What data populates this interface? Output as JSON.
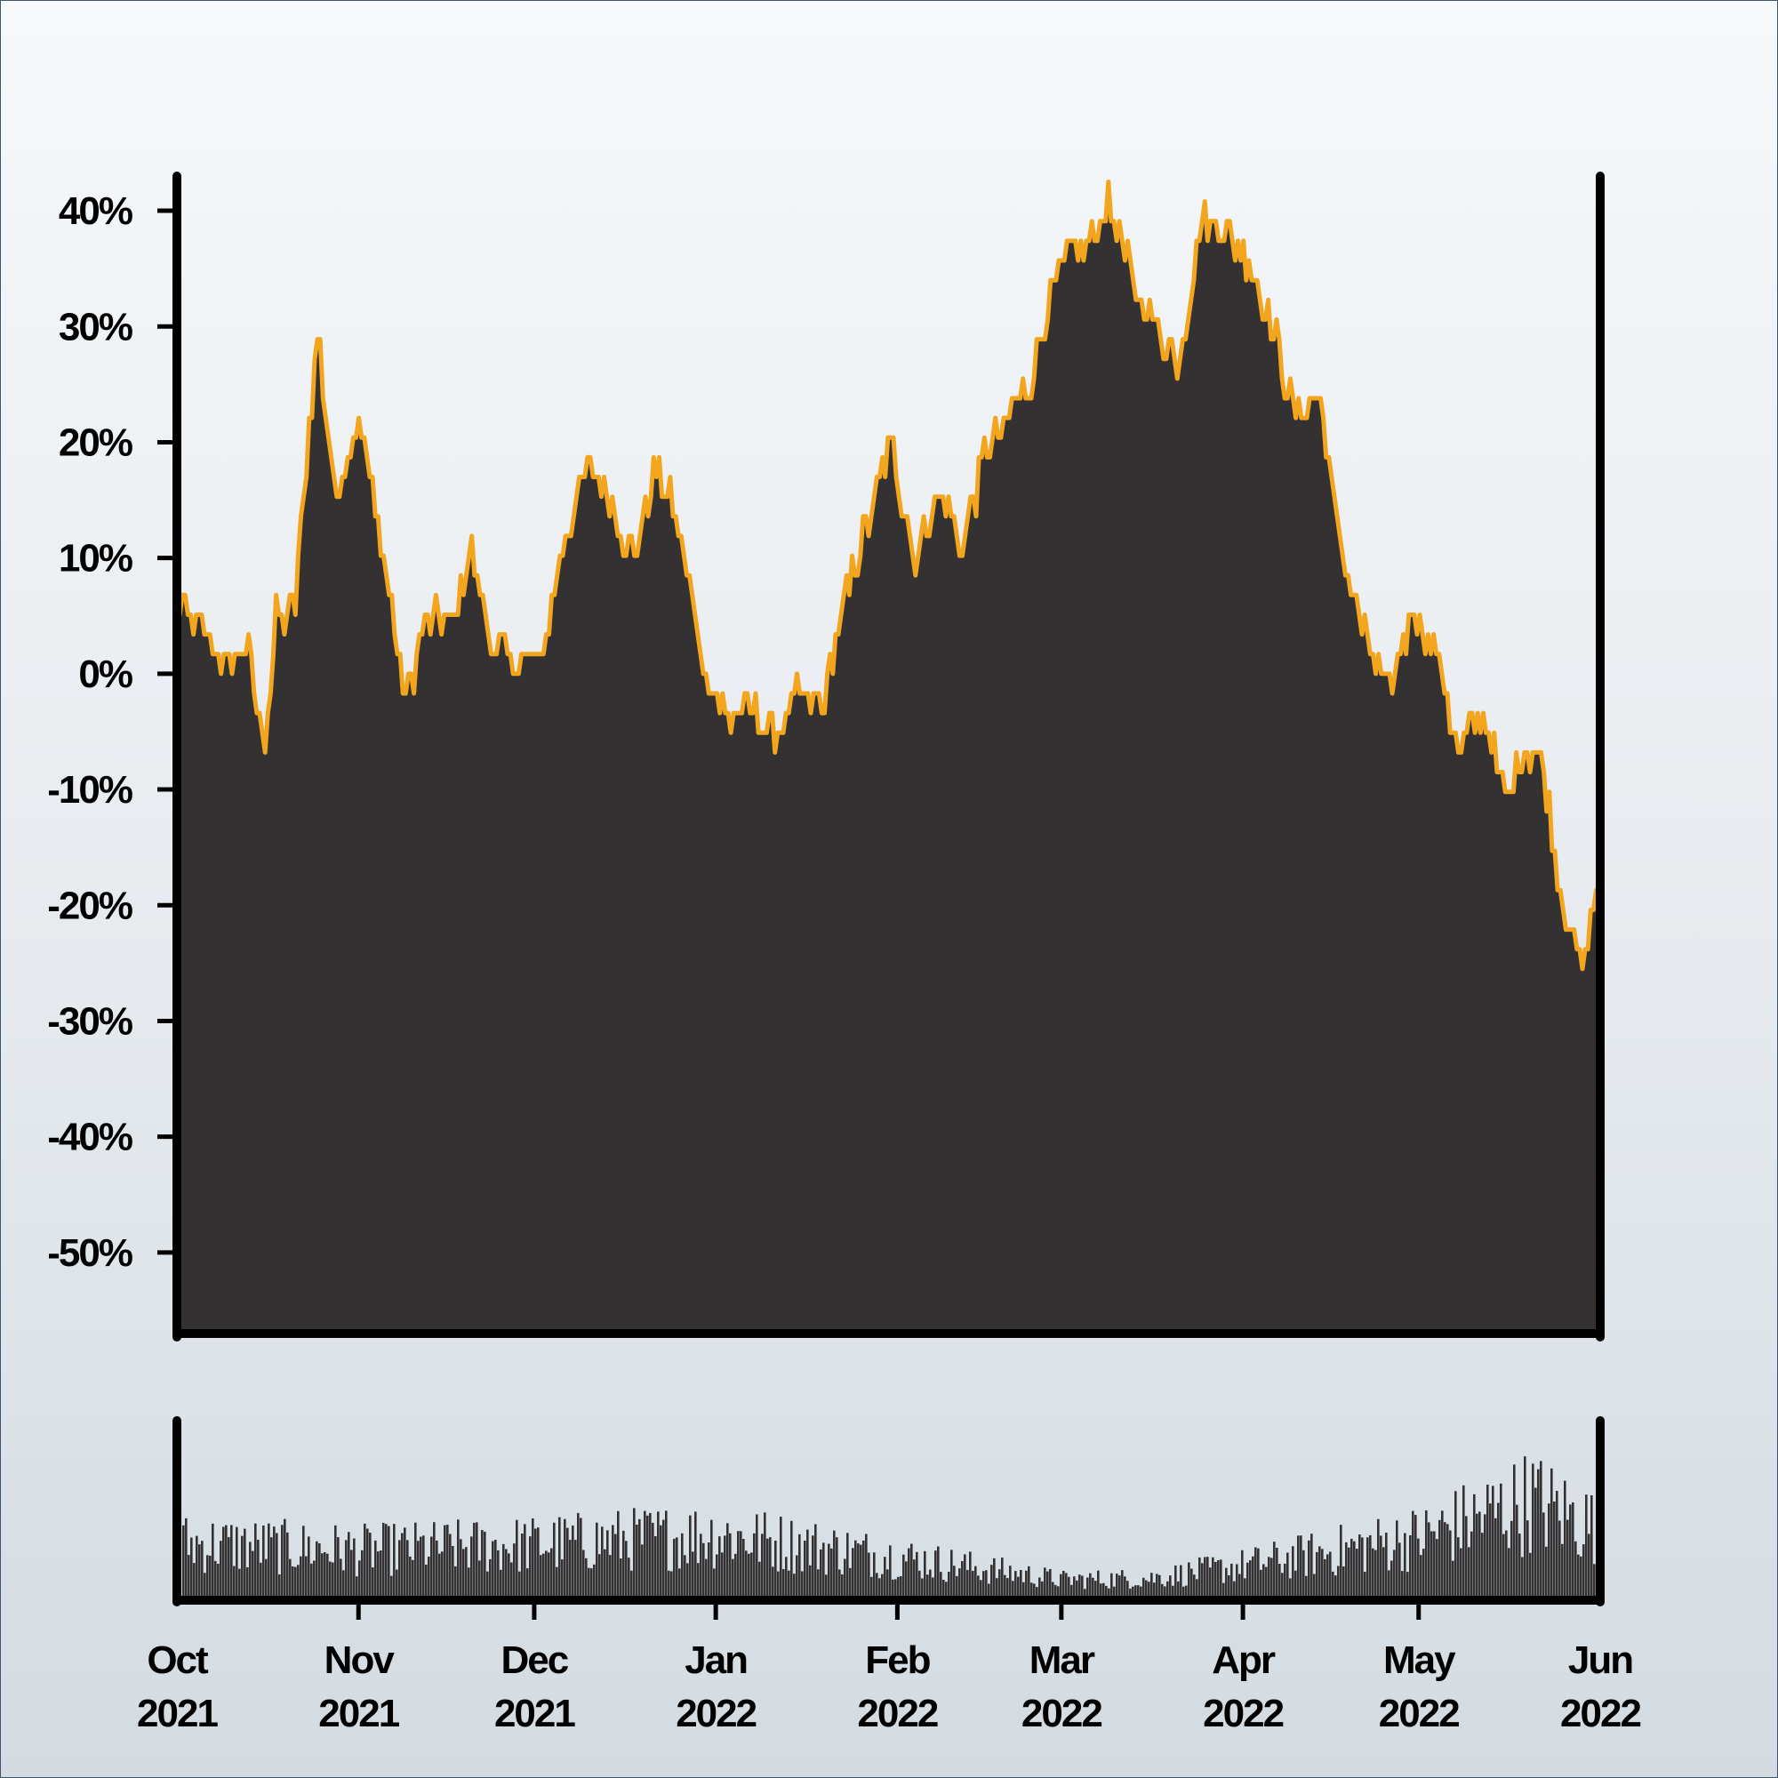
{
  "chart_data": [
    {
      "type": "area",
      "name": "returns-panel",
      "y_format": "percent",
      "ylim": [
        -57,
        43
      ],
      "yticks": [
        "40%",
        "30%",
        "20%",
        "10%",
        "0%",
        "-10%",
        "-20%",
        "-30%",
        "-40%",
        "-50%"
      ],
      "ytick_values": [
        40,
        30,
        20,
        10,
        0,
        -10,
        -20,
        -30,
        -40,
        -50
      ],
      "xlim": [
        "2021-10-01",
        "2022-06-01"
      ],
      "grid": false,
      "legend": "none",
      "x": [
        "2021-10-01",
        "2021-10-05",
        "2021-10-09",
        "2021-10-13",
        "2021-10-16",
        "2021-10-18",
        "2021-10-21",
        "2021-10-25",
        "2021-10-28",
        "2021-11-01",
        "2021-11-05",
        "2021-11-09",
        "2021-11-13",
        "2021-11-17",
        "2021-11-20",
        "2021-11-24",
        "2021-11-28",
        "2021-12-02",
        "2021-12-06",
        "2021-12-10",
        "2021-12-14",
        "2021-12-18",
        "2021-12-22",
        "2021-12-26",
        "2021-12-30",
        "2022-01-03",
        "2022-01-07",
        "2022-01-11",
        "2022-01-15",
        "2022-01-19",
        "2022-01-23",
        "2022-01-27",
        "2022-01-31",
        "2022-02-04",
        "2022-02-08",
        "2022-02-12",
        "2022-02-16",
        "2022-02-20",
        "2022-02-24",
        "2022-02-28",
        "2022-03-03",
        "2022-03-06",
        "2022-03-09",
        "2022-03-13",
        "2022-03-17",
        "2022-03-21",
        "2022-03-25",
        "2022-03-29",
        "2022-04-02",
        "2022-04-06",
        "2022-04-10",
        "2022-04-14",
        "2022-04-18",
        "2022-04-22",
        "2022-04-26",
        "2022-04-30",
        "2022-05-04",
        "2022-05-08",
        "2022-05-12",
        "2022-05-16",
        "2022-05-19",
        "2022-05-22",
        "2022-05-25",
        "2022-05-29",
        "2022-06-01"
      ],
      "values": [
        6,
        4,
        1,
        2,
        -6,
        5,
        5,
        30,
        15,
        22,
        11,
        -2,
        5,
        4,
        11,
        2,
        1,
        1,
        11,
        18,
        15,
        10,
        18,
        12,
        0,
        -4,
        -3,
        -6,
        -2,
        -3,
        6,
        13,
        20,
        10,
        16,
        11,
        19,
        22,
        26,
        34,
        37,
        37,
        41,
        34,
        30,
        27,
        40,
        38,
        36,
        30,
        22,
        24,
        10,
        3,
        -2,
        6,
        2,
        -7,
        -3,
        -11,
        -7,
        -7,
        -18,
        -26,
        -17
      ],
      "series_color": "#333132",
      "line_color": "#f2a51d"
    },
    {
      "type": "bar",
      "name": "volume-panel",
      "x_labels": [
        "Oct\n2021",
        "Nov\n2021",
        "Dec\n2021",
        "Jan\n2022",
        "Feb\n2022",
        "Mar\n2022",
        "Apr\n2022",
        "May\n2022",
        "Jun\n2022"
      ],
      "x_month_lines": [
        [
          "Oct",
          "2021"
        ],
        [
          "Nov",
          "2021"
        ],
        [
          "Dec",
          "2021"
        ],
        [
          "Jan",
          "2022"
        ],
        [
          "Feb",
          "2022"
        ],
        [
          "Mar",
          "2022"
        ],
        [
          "Apr",
          "2022"
        ],
        [
          "May",
          "2022"
        ],
        [
          "Jun",
          "2022"
        ]
      ],
      "volume_trend_x": [
        "2021-10-01",
        "2021-11-01",
        "2021-12-01",
        "2022-01-01",
        "2022-02-01",
        "2022-03-01",
        "2022-03-16",
        "2022-04-01",
        "2022-05-01",
        "2022-05-20",
        "2022-06-01"
      ],
      "volume_trend": [
        0.38,
        0.33,
        0.37,
        0.44,
        0.28,
        0.12,
        0.13,
        0.22,
        0.42,
        0.68,
        0.48
      ],
      "y_axis": "unlabeled",
      "bar_color": "#333132"
    }
  ],
  "colors": {
    "axis": "#000000",
    "fill": "#333132",
    "line": "#f2a51d",
    "frame": "#3d556e"
  }
}
